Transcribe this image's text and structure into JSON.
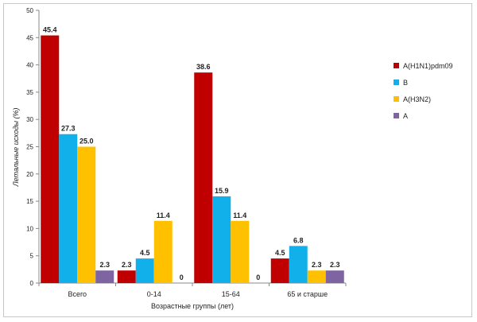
{
  "chart_data": {
    "type": "bar",
    "categories": [
      "Всего",
      "0-14",
      "15-64",
      "65 и старше"
    ],
    "series": [
      {
        "name": "A(H1N1)pdm09",
        "color": "#c00000",
        "values": [
          45.4,
          2.3,
          38.6,
          4.5
        ],
        "labels": [
          "45.4",
          "2.3",
          "38.6",
          "4.5"
        ]
      },
      {
        "name": "B",
        "color": "#12b0ea",
        "values": [
          27.3,
          4.5,
          15.9,
          6.8
        ],
        "labels": [
          "27.3",
          "4.5",
          "15.9",
          "6.8"
        ]
      },
      {
        "name": "A(H3N2)",
        "color": "#ffc000",
        "values": [
          25.0,
          11.4,
          11.4,
          2.3
        ],
        "labels": [
          "25.0",
          "11.4",
          "11.4",
          "2.3"
        ]
      },
      {
        "name": "A",
        "color": "#7f64a2",
        "values": [
          2.3,
          0,
          0,
          2.3
        ],
        "labels": [
          "2.3",
          "0",
          "0",
          "2.3"
        ]
      }
    ],
    "xlabel": "Возрастные группы (лет)",
    "ylabel": "Летальные исходы (%)",
    "ylim": [
      0,
      50
    ],
    "yticks": [
      0,
      5,
      10,
      15,
      20,
      25,
      30,
      35,
      40,
      45,
      50
    ],
    "grid": false,
    "legend_position": "right"
  }
}
